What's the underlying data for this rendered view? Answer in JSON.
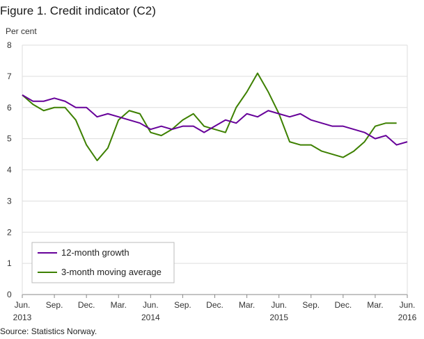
{
  "title": "Figure 1. Credit indicator (C2)",
  "source": "Source: Statistics Norway.",
  "chart_data": {
    "type": "line",
    "title": "Figure 1. Credit indicator (C2)",
    "ylabel": "Per cent",
    "ylim": [
      0,
      8
    ],
    "yticks": [
      0,
      1,
      2,
      3,
      4,
      5,
      6,
      7,
      8
    ],
    "grid": true,
    "legend_position": "bottom-left",
    "x": [
      "2013-06",
      "2013-07",
      "2013-08",
      "2013-09",
      "2013-10",
      "2013-11",
      "2013-12",
      "2014-01",
      "2014-02",
      "2014-03",
      "2014-04",
      "2014-05",
      "2014-06",
      "2014-07",
      "2014-08",
      "2014-09",
      "2014-10",
      "2014-11",
      "2014-12",
      "2015-01",
      "2015-02",
      "2015-03",
      "2015-04",
      "2015-05",
      "2015-06",
      "2015-07",
      "2015-08",
      "2015-09",
      "2015-10",
      "2015-11",
      "2015-12",
      "2016-01",
      "2016-02",
      "2016-03",
      "2016-04",
      "2016-05",
      "2016-06"
    ],
    "xtick_labels": [
      {
        "index": 0,
        "month": "Jun.",
        "year": "2013"
      },
      {
        "index": 3,
        "month": "Sep.",
        "year": ""
      },
      {
        "index": 6,
        "month": "Dec.",
        "year": ""
      },
      {
        "index": 9,
        "month": "Mar.",
        "year": ""
      },
      {
        "index": 12,
        "month": "Jun.",
        "year": "2014"
      },
      {
        "index": 15,
        "month": "Sep.",
        "year": ""
      },
      {
        "index": 18,
        "month": "Dec.",
        "year": ""
      },
      {
        "index": 21,
        "month": "Mar.",
        "year": ""
      },
      {
        "index": 24,
        "month": "Jun.",
        "year": "2015"
      },
      {
        "index": 27,
        "month": "Sep.",
        "year": ""
      },
      {
        "index": 30,
        "month": "Dec.",
        "year": ""
      },
      {
        "index": 33,
        "month": "Mar.",
        "year": ""
      },
      {
        "index": 36,
        "month": "Jun.",
        "year": "2016"
      }
    ],
    "series": [
      {
        "name": "12-month growth",
        "color": "#660099",
        "values": [
          6.4,
          6.2,
          6.2,
          6.3,
          6.2,
          6.0,
          6.0,
          5.7,
          5.8,
          5.7,
          5.6,
          5.5,
          5.3,
          5.4,
          5.3,
          5.4,
          5.4,
          5.2,
          5.4,
          5.6,
          5.5,
          5.8,
          5.7,
          5.9,
          5.8,
          5.7,
          5.8,
          5.6,
          5.5,
          5.4,
          5.4,
          5.3,
          5.2,
          5.0,
          5.1,
          4.8,
          4.9
        ]
      },
      {
        "name": "3-month moving average",
        "color": "#3d8000",
        "values": [
          6.4,
          6.1,
          5.9,
          6.0,
          6.0,
          5.6,
          4.8,
          4.3,
          4.7,
          5.6,
          5.9,
          5.8,
          5.2,
          5.1,
          5.3,
          5.6,
          5.8,
          5.4,
          5.3,
          5.2,
          6.0,
          6.5,
          7.1,
          6.5,
          5.8,
          4.9,
          4.8,
          4.8,
          4.6,
          4.5,
          4.4,
          4.6,
          4.9,
          5.4,
          5.5,
          5.5,
          null
        ]
      }
    ]
  }
}
